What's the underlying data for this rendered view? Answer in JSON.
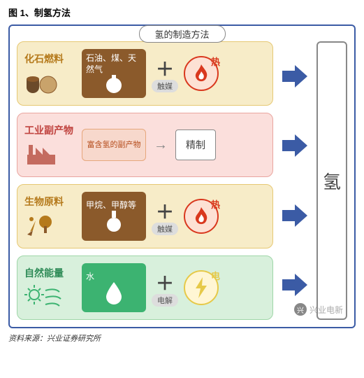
{
  "figure_title": "图 1、制氢方法",
  "header": "氢的制造方法",
  "output_label": "氢",
  "source": "资料来源：兴业证券研究所",
  "watermark": "兴业电新",
  "colors": {
    "frame_border": "#3b5ba5",
    "arrow": "#3b5ba5",
    "background": "#ffffff"
  },
  "rows": [
    {
      "id": "fossil",
      "label": "化石燃料",
      "label_color": "#b57a1c",
      "row_bg": "#f7ecc8",
      "row_border": "#e6c873",
      "input": {
        "text": "石油、煤、天然气",
        "bg": "#8b5a2b",
        "icon": "fuel"
      },
      "operator": "+",
      "sub_label": "触媒",
      "energy": {
        "text": "热",
        "bg": "#fde1d4",
        "border": "#d9381e",
        "icon": "flame",
        "icon_color": "#d9381e"
      },
      "left_icon": "barrels"
    },
    {
      "id": "byproduct",
      "label": "工业副产物",
      "label_color": "#c0433f",
      "row_bg": "#fbdfdc",
      "row_border": "#e9a59f",
      "input": {
        "text": "富含氢的副产物",
        "style": "light"
      },
      "operator": "arrow",
      "refine": "精制",
      "left_icon": "factory"
    },
    {
      "id": "bio",
      "label": "生物原料",
      "label_color": "#b57a1c",
      "row_bg": "#f7ecc8",
      "row_border": "#e6c873",
      "input": {
        "text": "甲烷、甲醇等",
        "bg": "#8b5a2b",
        "icon": "flask"
      },
      "operator": "+",
      "sub_label": "触媒",
      "energy": {
        "text": "热",
        "bg": "#fde1d4",
        "border": "#d9381e",
        "icon": "flame",
        "icon_color": "#d9381e"
      },
      "left_icon": "biomass"
    },
    {
      "id": "renewable",
      "label": "自然能量",
      "label_color": "#2e8b57",
      "row_bg": "#d8f0dc",
      "row_border": "#9fd6a8",
      "input": {
        "text": "水",
        "bg": "#3cb371",
        "icon": "drop"
      },
      "operator": "+",
      "sub_label": "电解",
      "energy": {
        "text": "电",
        "bg": "#fff6d4",
        "border": "#e6c948",
        "icon": "bolt",
        "icon_color": "#e6c948"
      },
      "left_icon": "sunwind"
    }
  ]
}
